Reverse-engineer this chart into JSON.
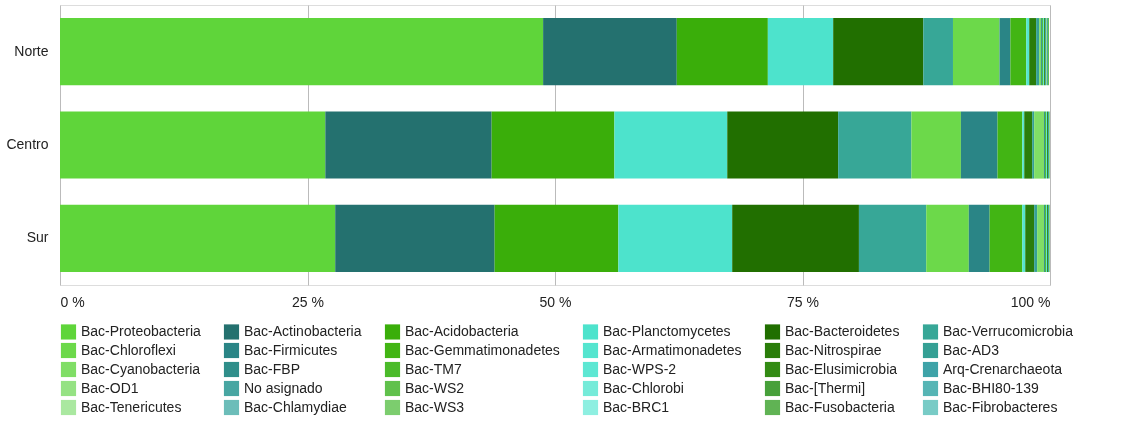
{
  "chart_data": {
    "type": "bar",
    "orientation": "horizontal",
    "stacked": true,
    "categories": [
      "Norte",
      "Centro",
      "Sur"
    ],
    "xlim": [
      0,
      100
    ],
    "xticks": [
      {
        "value": 0,
        "label": "0 %"
      },
      {
        "value": 25,
        "label": "25 %"
      },
      {
        "value": 50,
        "label": "50 %"
      },
      {
        "value": 75,
        "label": "75 %"
      },
      {
        "value": 100,
        "label": "100 %"
      }
    ],
    "grid": "x",
    "legend": "bottom",
    "series": [
      {
        "name": "Bac-Proteobacteria",
        "color": "#5fd53a",
        "values": [
          48.8,
          26.8,
          27.8
        ]
      },
      {
        "name": "Bac-Actinobacteria",
        "color": "#24716f",
        "values": [
          13.5,
          16.8,
          16.1
        ]
      },
      {
        "name": "Bac-Acidobacteria",
        "color": "#3aae0a",
        "values": [
          9.2,
          12.4,
          12.5
        ]
      },
      {
        "name": "Bac-Planctomycetes",
        "color": "#4de3cc",
        "values": [
          6.6,
          11.4,
          11.5
        ]
      },
      {
        "name": "Bac-Bacteroidetes",
        "color": "#216f00",
        "values": [
          9.1,
          11.2,
          12.8
        ]
      },
      {
        "name": "Bac-Verrucomicrobia",
        "color": "#37a797",
        "values": [
          3.0,
          7.4,
          6.8
        ]
      },
      {
        "name": "Bac-Chloroflexi",
        "color": "#6cd94a",
        "values": [
          4.7,
          5.0,
          4.3
        ]
      },
      {
        "name": "Bac-Firmicutes",
        "color": "#2a8586",
        "values": [
          1.1,
          3.7,
          2.1
        ]
      },
      {
        "name": "Bac-Gemmatimonadetes",
        "color": "#42b514",
        "values": [
          1.6,
          2.5,
          3.3
        ]
      },
      {
        "name": "Bac-Armatimonadetes",
        "color": "#55e5cf",
        "values": [
          0.3,
          0.2,
          0.3
        ]
      },
      {
        "name": "Bac-Nitrospirae",
        "color": "#2a7d0a",
        "values": [
          0.7,
          0.8,
          0.9
        ]
      },
      {
        "name": "Bac-AD3",
        "color": "#35a095",
        "values": [
          0.3,
          0.2,
          0.3
        ]
      },
      {
        "name": "Bac-Cyanobacteria",
        "color": "#80de66",
        "values": [
          0.2,
          1.0,
          0.7
        ]
      },
      {
        "name": "Bac-FBP",
        "color": "#2f8e8a",
        "values": [
          0.1,
          0.1,
          0.1
        ]
      },
      {
        "name": "Bac-TM7",
        "color": "#4bbb2a",
        "values": [
          0.1,
          0.1,
          0.1
        ]
      },
      {
        "name": "Bac-WPS-2",
        "color": "#5de7d3",
        "values": [
          0.1,
          0.1,
          0.1
        ]
      },
      {
        "name": "Bac-Elusimicrobia",
        "color": "#338b14",
        "values": [
          0.1,
          0.1,
          0.1
        ]
      },
      {
        "name": "Arq-Crenarchaeota",
        "color": "#3ea3a8",
        "values": [
          0.1,
          0.1,
          0.1
        ]
      },
      {
        "name": "Bac-OD1",
        "color": "#95e283",
        "values": [
          0.1,
          0.1,
          0.1
        ]
      },
      {
        "name": "No asignado",
        "color": "#48a6a2",
        "values": [
          0.1,
          null,
          null
        ]
      },
      {
        "name": "Bac-WS2",
        "color": "#60c14c",
        "values": [
          0.1,
          null,
          null
        ]
      },
      {
        "name": "Bac-Chlorobi",
        "color": "#75ebd9",
        "values": [
          null,
          null,
          null
        ]
      },
      {
        "name": "Bac-[Thermi]",
        "color": "#47a03a",
        "values": [
          null,
          null,
          null
        ]
      },
      {
        "name": "Bac-BHI80-139",
        "color": "#56b5b5",
        "values": [
          null,
          null,
          null
        ]
      },
      {
        "name": "Bac-Tenericutes",
        "color": "#aae8a0",
        "values": [
          null,
          null,
          null
        ]
      },
      {
        "name": "Bac-Chlamydiae",
        "color": "#6cbdb9",
        "values": [
          null,
          null,
          null
        ]
      },
      {
        "name": "Bac-WS3",
        "color": "#7ccd6e",
        "values": [
          null,
          null,
          null
        ]
      },
      {
        "name": "Bac-BRC1",
        "color": "#8eefe1",
        "values": [
          null,
          null,
          null
        ]
      },
      {
        "name": "Bac-Fusobacteria",
        "color": "#60b354",
        "values": [
          null,
          null,
          null
        ]
      },
      {
        "name": "Bac-Fibrobacteres",
        "color": "#78cbc6",
        "values": [
          null,
          null,
          null
        ]
      }
    ]
  }
}
